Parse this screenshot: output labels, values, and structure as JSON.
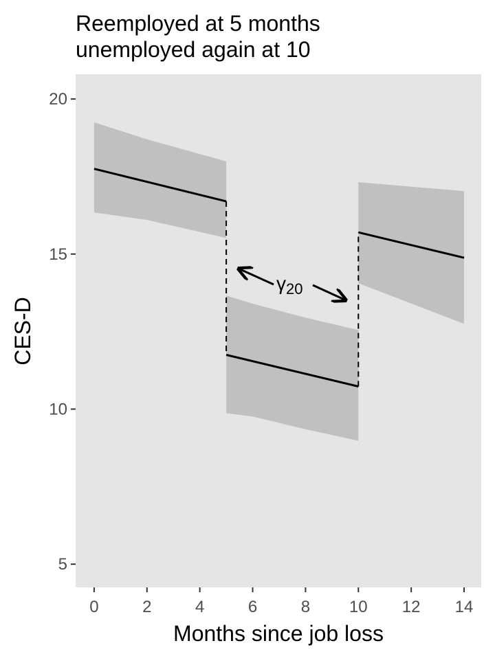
{
  "chart_data": {
    "type": "line",
    "title": [
      "Reemployed at 5 months",
      "unemployed again at 10"
    ],
    "x_label": "Months since job loss",
    "y_label": "CES-D",
    "xlim": [
      -0.7,
      14.65
    ],
    "ylim": [
      4.25,
      20.8
    ],
    "xticks": [
      0,
      2,
      4,
      6,
      8,
      10,
      12,
      14
    ],
    "yticks": [
      5,
      10,
      15,
      20
    ],
    "grid": false,
    "line_color": "#000000",
    "ribbon_color": "#c0c0c0",
    "panel_color": "#e5e5e5",
    "series": [
      {
        "x": [
          0,
          5
        ],
        "values": [
          17.75,
          16.7
        ]
      },
      {
        "x": [
          5,
          10
        ],
        "values": [
          11.75,
          10.73
        ]
      },
      {
        "x": [
          10,
          14
        ],
        "values": [
          15.7,
          14.88
        ]
      }
    ],
    "ribbons": [
      {
        "x": [
          0,
          2,
          5
        ],
        "upper": [
          19.25,
          18.7,
          17.99
        ],
        "lower": [
          16.34,
          16.1,
          15.52
        ]
      },
      {
        "x": [
          5,
          6,
          8,
          10
        ],
        "upper": [
          13.66,
          13.4,
          12.95,
          12.55
        ],
        "lower": [
          9.87,
          9.76,
          9.35,
          8.98
        ]
      },
      {
        "x": [
          10,
          14
        ],
        "upper": [
          17.32,
          17.03
        ],
        "lower": [
          14.06,
          12.75
        ]
      }
    ],
    "annotation": {
      "symbol": "γ",
      "subscript": "20"
    }
  }
}
